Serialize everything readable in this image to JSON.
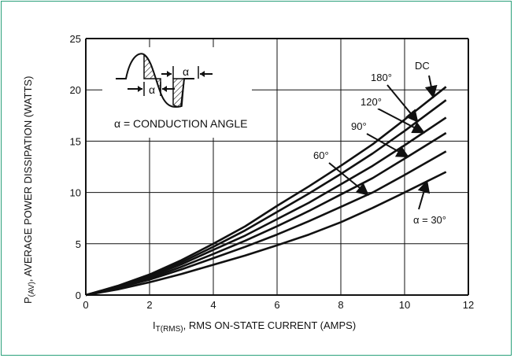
{
  "chart_data": {
    "type": "line",
    "xlabel_main": "I",
    "xlabel_sub": "T(RMS)",
    "xlabel_rest": ", RMS ON-STATE CURRENT (AMPS)",
    "ylabel_main": "P",
    "ylabel_sub": "(AV)",
    "ylabel_rest": ", AVERAGE POWER DISSIPATION (WATTS)",
    "xlim": [
      0,
      12
    ],
    "ylim": [
      0,
      25
    ],
    "xticks": [
      "0",
      "2",
      "4",
      "6",
      "8",
      "10",
      "12"
    ],
    "yticks": [
      "0",
      "5",
      "10",
      "15",
      "20",
      "25"
    ],
    "grid": true,
    "inset_alpha_1": "α",
    "inset_alpha_2": "α",
    "inset_caption": "α = CONDUCTION ANGLE",
    "series": [
      {
        "name": "DC",
        "x": [
          0,
          1,
          2,
          3,
          4,
          5,
          6,
          7,
          8,
          9,
          10,
          11.3
        ],
        "y": [
          0,
          0.9,
          2.0,
          3.4,
          5.0,
          6.7,
          8.7,
          10.6,
          12.6,
          14.7,
          17.1,
          20.3
        ]
      },
      {
        "name": "180°",
        "x": [
          0,
          1,
          2,
          3,
          4,
          5,
          6,
          7,
          8,
          9,
          10,
          11.3
        ],
        "y": [
          0,
          0.85,
          1.9,
          3.2,
          4.7,
          6.3,
          8.1,
          9.9,
          11.8,
          13.8,
          16.0,
          19.0
        ]
      },
      {
        "name": "120°",
        "x": [
          0,
          1,
          2,
          3,
          4,
          5,
          6,
          7,
          8,
          9,
          10,
          11.3
        ],
        "y": [
          0,
          0.8,
          1.8,
          3.0,
          4.4,
          5.8,
          7.4,
          9.0,
          10.8,
          12.6,
          14.6,
          17.3
        ]
      },
      {
        "name": "90°",
        "x": [
          0,
          1,
          2,
          3,
          4,
          5,
          6,
          7,
          8,
          9,
          10,
          11.3
        ],
        "y": [
          0,
          0.75,
          1.65,
          2.75,
          4.0,
          5.3,
          6.7,
          8.2,
          9.8,
          11.4,
          13.3,
          15.8
        ]
      },
      {
        "name": "60°",
        "x": [
          0,
          1,
          2,
          3,
          4,
          5,
          6,
          7,
          8,
          9,
          10,
          11.3
        ],
        "y": [
          0,
          0.7,
          1.5,
          2.5,
          3.6,
          4.7,
          5.9,
          7.2,
          8.6,
          10.0,
          11.7,
          14.0
        ]
      },
      {
        "name": "α = 30°",
        "x": [
          0,
          1,
          2,
          3,
          4,
          5,
          6,
          7,
          8,
          9,
          10,
          11.3
        ],
        "y": [
          0,
          0.55,
          1.25,
          2.05,
          2.95,
          3.85,
          4.85,
          5.9,
          7.1,
          8.5,
          10.0,
          12.0
        ]
      }
    ],
    "curve_labels": [
      {
        "text": "DC",
        "series": 0
      },
      {
        "text": "180°",
        "series": 1
      },
      {
        "text": "120°",
        "series": 2
      },
      {
        "text": "90°",
        "series": 3
      },
      {
        "text": "60°",
        "series": 4
      },
      {
        "text": "α = 30°",
        "series": 5
      }
    ]
  }
}
